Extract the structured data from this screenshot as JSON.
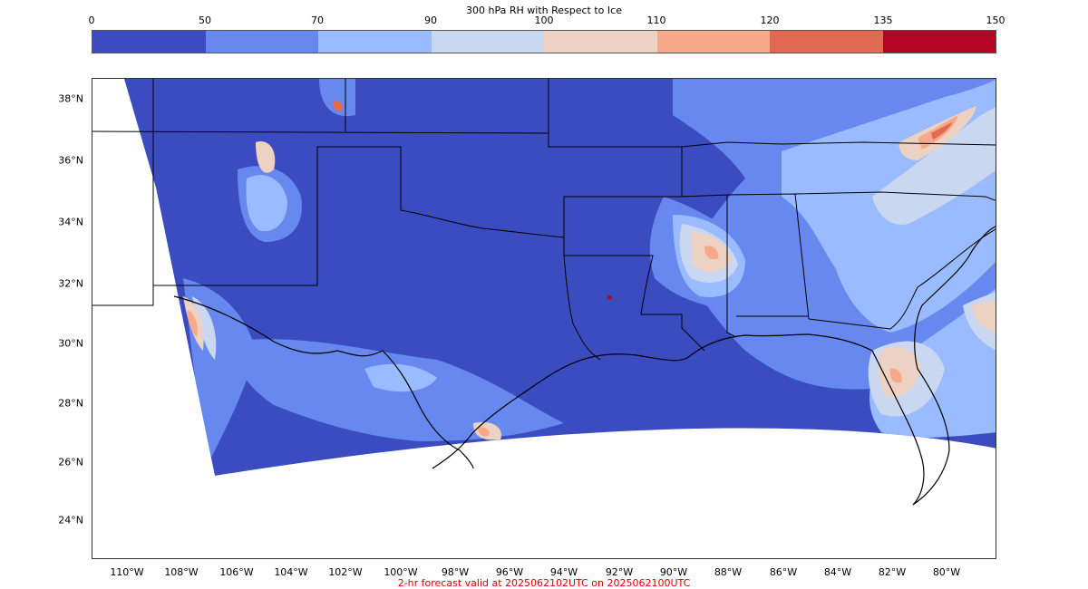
{
  "colorbar": {
    "title": "300 hPa RH with Respect to Ice",
    "ticks": [
      "0",
      "50",
      "70",
      "90",
      "100",
      "110",
      "120",
      "135",
      "150"
    ],
    "colors": [
      "#3b4cc0",
      "#6788ee",
      "#9abbff",
      "#c9d7f0",
      "#edd1c2",
      "#f7a889",
      "#e26952",
      "#b40426"
    ]
  },
  "map": {
    "latitude_labels": [
      "38°N",
      "36°N",
      "34°N",
      "32°N",
      "30°N",
      "28°N",
      "26°N",
      "24°N"
    ],
    "longitude_labels": [
      "110°W",
      "108°W",
      "106°W",
      "104°W",
      "102°W",
      "100°W",
      "98°W",
      "96°W",
      "94°W",
      "92°W",
      "90°W",
      "88°W",
      "86°W",
      "84°W",
      "82°W",
      "80°W"
    ],
    "background_field_color": "#3b4cc0",
    "border_color": "#000000"
  },
  "footer": {
    "caption": "2-hr forecast valid at 2025062102UTC on 2025062100UTC",
    "caption_color": "#e00000"
  }
}
